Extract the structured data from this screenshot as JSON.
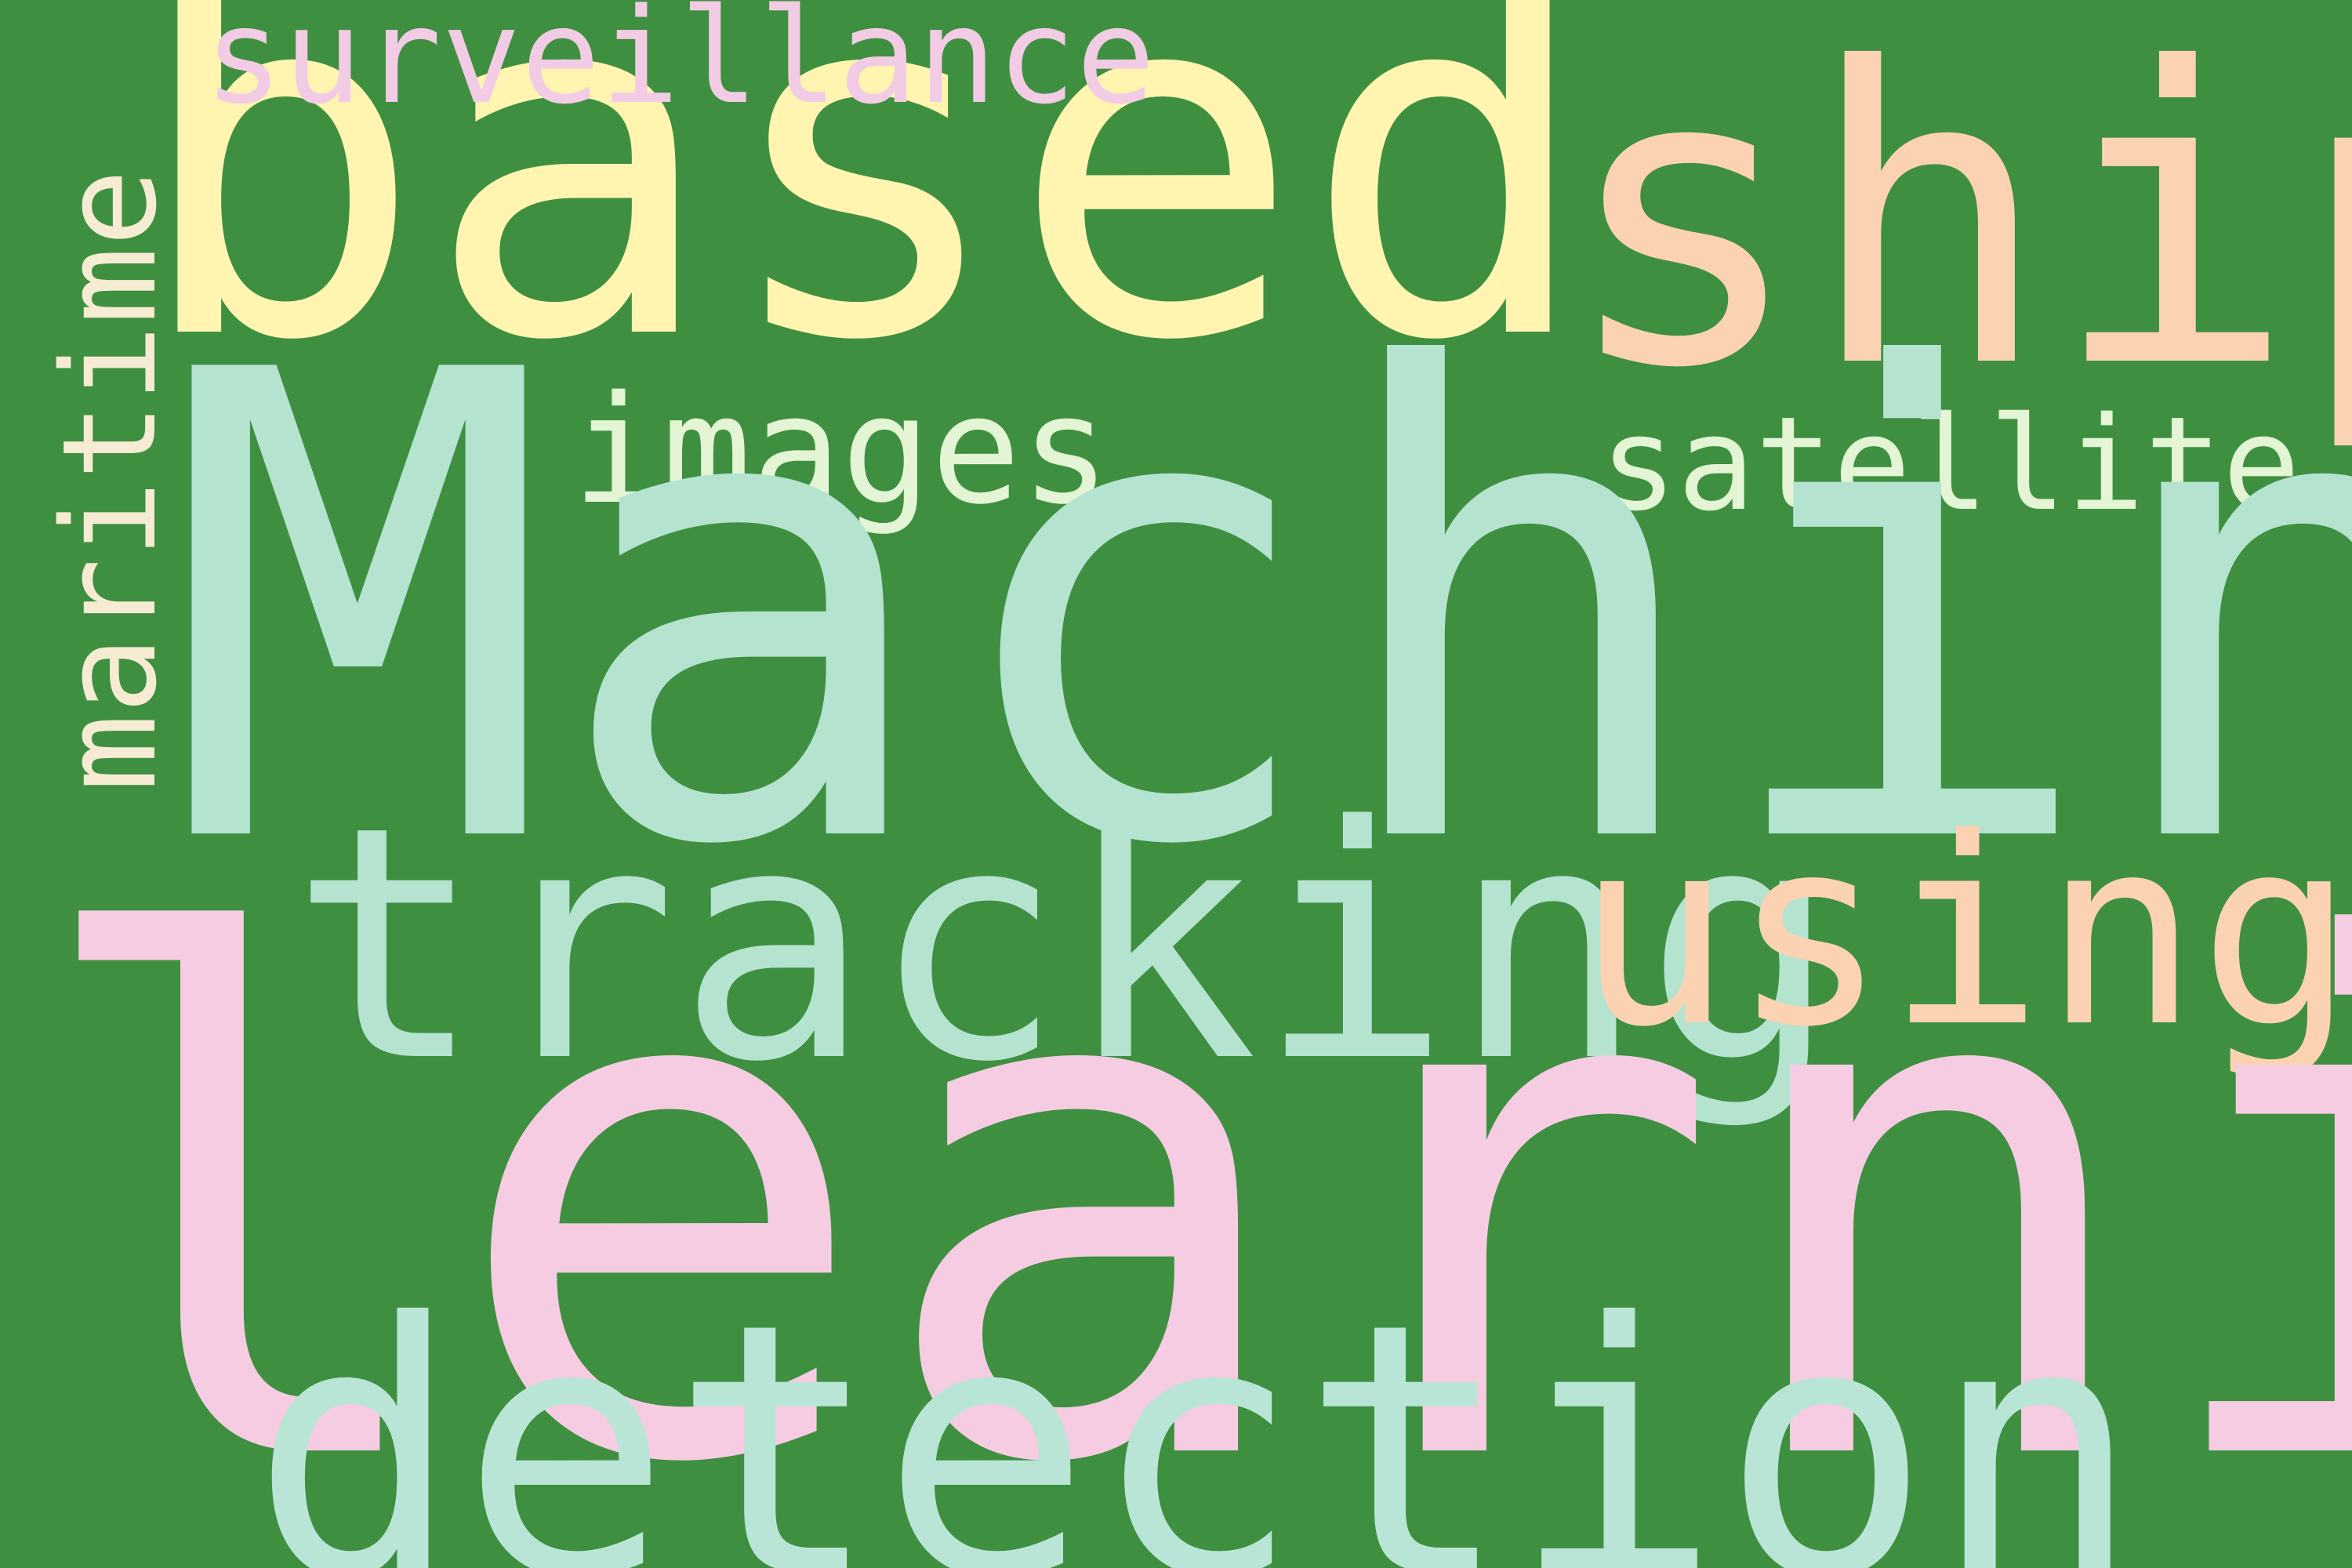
{
  "words": [
    {
      "text": "based",
      "color": "#fff5b1"
    },
    {
      "text": "surveillance",
      "color": "#f2cbe4"
    },
    {
      "text": "ship",
      "color": "#fbd2b2"
    },
    {
      "text": "maritime",
      "color": "#f6ebd3"
    },
    {
      "text": "images",
      "color": "#e3f5d4"
    },
    {
      "text": "satellite",
      "color": "#e3f5d4"
    },
    {
      "text": "Machine",
      "color": "#b4e3d0"
    },
    {
      "text": "tracking",
      "color": "#b4e3d0"
    },
    {
      "text": "using",
      "color": "#fbd2b2"
    },
    {
      "text": "learning",
      "color": "#f5cce2"
    },
    {
      "text": "detection",
      "color": "#b9e5d6"
    }
  ],
  "background": "#3f8f41"
}
